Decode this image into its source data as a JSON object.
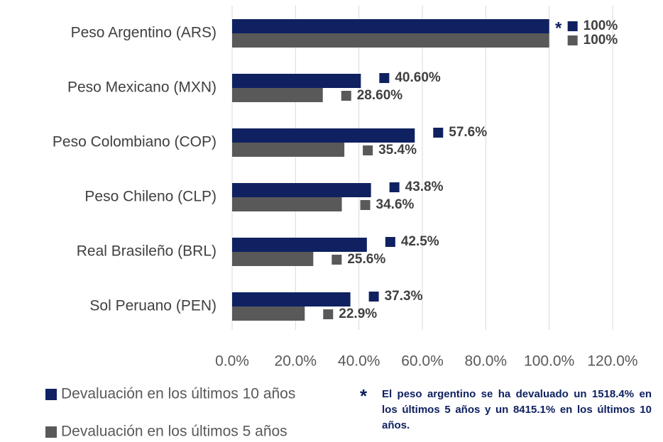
{
  "chart_data": {
    "type": "bar",
    "orientation": "horizontal",
    "categories": [
      "Peso Argentino (ARS)",
      "Peso Mexicano (MXN)",
      "Peso Colombiano (COP)",
      "Peso Chileno (CLP)",
      "Real Brasileño (BRL)",
      "Sol Peruano (PEN)"
    ],
    "series": [
      {
        "name": "Devaluación en los últimos 10 años",
        "color": "#0f2160",
        "values": [
          100,
          40.6,
          57.6,
          43.8,
          42.5,
          37.3
        ],
        "value_labels": [
          "100%",
          "40.60%",
          "57.6%",
          "43.8%",
          "42.5%",
          "37.3%"
        ]
      },
      {
        "name": "Devaluación en los últimos 5 años",
        "color": "#595959",
        "values": [
          100,
          28.6,
          35.4,
          34.6,
          25.6,
          22.9
        ],
        "value_labels": [
          "100%",
          "28.60%",
          "35.4%",
          "34.6%",
          "25.6%",
          "22.9%"
        ]
      }
    ],
    "xlim": [
      0,
      120
    ],
    "xticks": [
      {
        "value": 0,
        "label": "0.0%"
      },
      {
        "value": 20,
        "label": "20.0%"
      },
      {
        "value": 40,
        "label": "40.0%"
      },
      {
        "value": 60,
        "label": "60.0%"
      },
      {
        "value": 80,
        "label": "80.0%"
      },
      {
        "value": 100,
        "label": "100.0%"
      },
      {
        "value": 120,
        "label": "120.0%"
      }
    ],
    "grid": true,
    "marker": "*",
    "annotation": "El peso argentino se ha devaluado un 1518.4% en los últimos 5 años y un 8415.1% en los últimos 10 años."
  }
}
